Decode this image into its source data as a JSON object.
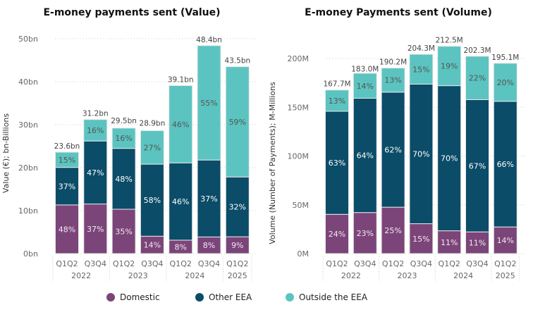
{
  "legend": [
    {
      "name": "Domestic",
      "color": "#7b4579"
    },
    {
      "name": "Other EEA",
      "color": "#0b4c68"
    },
    {
      "name": "Outside the EEA",
      "color": "#5bc4c0"
    }
  ],
  "chart_data": [
    {
      "type": "bar",
      "stacked": true,
      "title": "E-money payments sent (Value)",
      "ylabel": "Value (€); bn-Billions",
      "ylim": [
        0,
        50
      ],
      "yticks": [
        "0bn",
        "10bn",
        "20bn",
        "30bn",
        "40bn",
        "50bn"
      ],
      "ytick_values": [
        0,
        10,
        20,
        30,
        40,
        50
      ],
      "categories": [
        "Q1Q2",
        "Q3Q4",
        "Q1Q2",
        "Q3Q4",
        "Q1Q2",
        "Q3Q4",
        "Q1Q2"
      ],
      "years": [
        {
          "label": "2022",
          "span": 2
        },
        {
          "label": "2023",
          "span": 2
        },
        {
          "label": "2024",
          "span": 2
        },
        {
          "label": "2025",
          "span": 1
        }
      ],
      "totals": [
        23.6,
        31.2,
        29.5,
        28.9,
        39.1,
        48.4,
        43.5
      ],
      "total_labels": [
        "23.6bn",
        "31.2bn",
        "29.5bn",
        "28.9bn",
        "39.1bn",
        "48.4bn",
        "43.5bn"
      ],
      "series": [
        {
          "name": "Domestic",
          "percent": [
            48,
            37,
            35,
            14,
            8,
            8,
            9
          ]
        },
        {
          "name": "Other EEA",
          "percent": [
            37,
            47,
            48,
            58,
            46,
            37,
            32
          ]
        },
        {
          "name": "Outside the EEA",
          "percent": [
            15,
            16,
            16,
            27,
            46,
            55,
            59
          ]
        }
      ],
      "grid": true
    },
    {
      "type": "bar",
      "stacked": true,
      "title": "E-money Payments sent (Volume)",
      "ylabel": "Volume (Number of Payments); M-Millions",
      "ylim": [
        0,
        200
      ],
      "yticks": [
        "0M",
        "50M",
        "100M",
        "150M",
        "200M"
      ],
      "ytick_values": [
        0,
        50,
        100,
        150,
        200
      ],
      "categories": [
        "Q1Q2",
        "Q3Q4",
        "Q1Q2",
        "Q3Q4",
        "Q1Q2",
        "Q3Q4",
        "Q1Q2"
      ],
      "years": [
        {
          "label": "2022",
          "span": 2
        },
        {
          "label": "2023",
          "span": 2
        },
        {
          "label": "2024",
          "span": 2
        },
        {
          "label": "2025",
          "span": 1
        }
      ],
      "totals": [
        167.7,
        183.0,
        190.2,
        204.3,
        212.5,
        202.3,
        195.1
      ],
      "total_labels": [
        "167.7M",
        "183.0M",
        "190.2M",
        "204.3M",
        "212.5M",
        "202.3M",
        "195.1M"
      ],
      "series": [
        {
          "name": "Domestic",
          "percent": [
            24,
            23,
            25,
            15,
            11,
            11,
            14
          ]
        },
        {
          "name": "Other EEA",
          "percent": [
            63,
            64,
            62,
            70,
            70,
            67,
            66
          ]
        },
        {
          "name": "Outside the EEA",
          "percent": [
            13,
            14,
            13,
            15,
            19,
            22,
            20
          ]
        }
      ],
      "grid": true
    }
  ]
}
